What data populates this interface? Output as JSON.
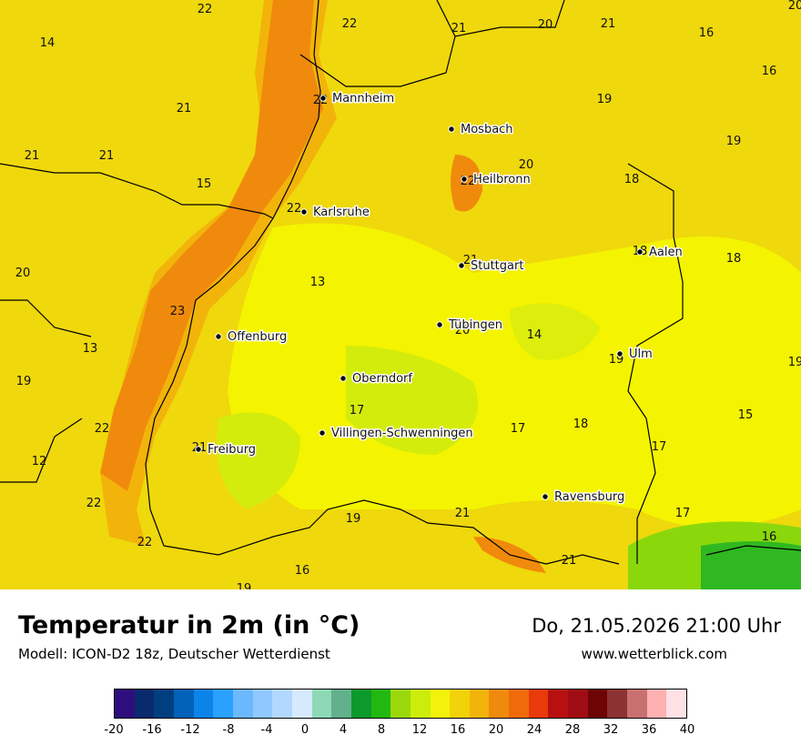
{
  "map": {
    "cities": [
      {
        "name": "Mannheim",
        "temp": "22"
      },
      {
        "name": "Mosbach",
        "temp": ""
      },
      {
        "name": "Heilbronn",
        "temp": "22"
      },
      {
        "name": "Karlsruhe",
        "temp": "22"
      },
      {
        "name": "Stuttgart",
        "temp": "21"
      },
      {
        "name": "Aalen",
        "temp": "18"
      },
      {
        "name": "Tübingen",
        "temp": "20"
      },
      {
        "name": "Offenburg",
        "temp": ""
      },
      {
        "name": "Ulm",
        "temp": "19"
      },
      {
        "name": "Oberndorf",
        "temp": ""
      },
      {
        "name": "Villingen-Schwenningen",
        "temp": ""
      },
      {
        "name": "Freiburg",
        "temp": "21"
      },
      {
        "name": "Ravensburg",
        "temp": ""
      }
    ],
    "values": [
      "22",
      "22",
      "21",
      "20",
      "21",
      "20",
      "14",
      "16",
      "16",
      "21",
      "19",
      "19",
      "21",
      "21",
      "20",
      "15",
      "18",
      "20",
      "13",
      "18",
      "23",
      "13",
      "14",
      "19",
      "19",
      "17",
      "17",
      "18",
      "22",
      "17",
      "12",
      "15",
      "22",
      "21",
      "17",
      "19",
      "22",
      "16",
      "16",
      "19",
      "21"
    ]
  },
  "footer": {
    "title": "Temperatur in 2m (in °C)",
    "model": "Modell: ICON-D2 18z, Deutscher Wetterdienst",
    "datetime": "Do, 21.05.2026 21:00 Uhr",
    "website": "www.wetterblick.com"
  },
  "legend": {
    "colors": [
      "#2e0e7e",
      "#0a2a6e",
      "#003f7f",
      "#0062b8",
      "#0a84e8",
      "#2aa0ff",
      "#6cb8ff",
      "#8fc8ff",
      "#b2d8ff",
      "#d6e9ff",
      "#8ed8b6",
      "#62b08c",
      "#0c9a2c",
      "#22b812",
      "#9ad80c",
      "#ccec0c",
      "#f2f20a",
      "#f2d20a",
      "#f2b40a",
      "#f08a0c",
      "#f06a0a",
      "#e83a0a",
      "#b81010",
      "#a00c14",
      "#6e0404",
      "#8c3232",
      "#c87070",
      "#ffb0b0",
      "#ffe0e4"
    ],
    "ticks": [
      "-20",
      "-16",
      "-12",
      "-8",
      "-4",
      "0",
      "4",
      "8",
      "12",
      "16",
      "20",
      "24",
      "28",
      "32",
      "36",
      "40"
    ]
  },
  "colors": {
    "land_base": "#efe010",
    "warm": "#f2c010",
    "warmer": "#f29a10",
    "hot": "#f07c12",
    "cool": "#f4f400",
    "cooler": "#d8ec0c",
    "green": "#30b820"
  }
}
